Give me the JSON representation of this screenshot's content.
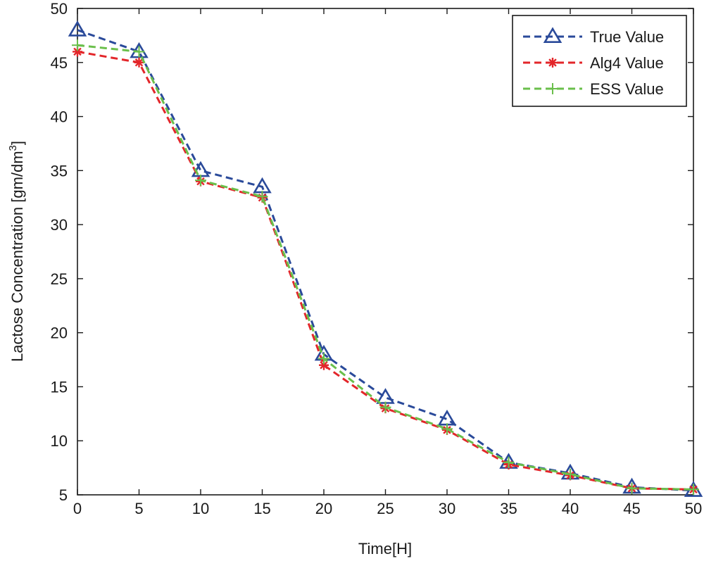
{
  "chart_data": {
    "type": "line",
    "xlabel": "Time[H]",
    "ylabel": "Lactose Concentration [gm/dm",
    "ylabel_sup": "3",
    "ylabel_end": "]",
    "xlim": [
      0,
      50
    ],
    "ylim": [
      5,
      50
    ],
    "xticks": [
      0,
      5,
      10,
      15,
      20,
      25,
      30,
      35,
      40,
      45,
      50
    ],
    "yticks": [
      5,
      10,
      15,
      20,
      25,
      30,
      35,
      40,
      45,
      50
    ],
    "grid": false,
    "legend_position": "top-right",
    "x": [
      0,
      5,
      10,
      15,
      20,
      25,
      30,
      35,
      40,
      45,
      50
    ],
    "series": [
      {
        "name": "True Value",
        "color": "#2a4a9a",
        "marker": "triangle",
        "linestyle": "dashed",
        "values": [
          48,
          46,
          35,
          33.5,
          18,
          14,
          12,
          8,
          7,
          5.7,
          5.4
        ]
      },
      {
        "name": "Alg4 Value",
        "color": "#e3262a",
        "marker": "asterisk",
        "linestyle": "dashed",
        "values": [
          46,
          45,
          34,
          32.5,
          17,
          13,
          11,
          7.8,
          6.8,
          5.6,
          5.5
        ]
      },
      {
        "name": "ESS Value",
        "color": "#6abf4b",
        "marker": "plus",
        "linestyle": "dashed",
        "values": [
          46.6,
          46,
          34.1,
          32.6,
          17.6,
          13.1,
          11.1,
          8,
          6.9,
          5.6,
          5.5
        ]
      }
    ]
  }
}
